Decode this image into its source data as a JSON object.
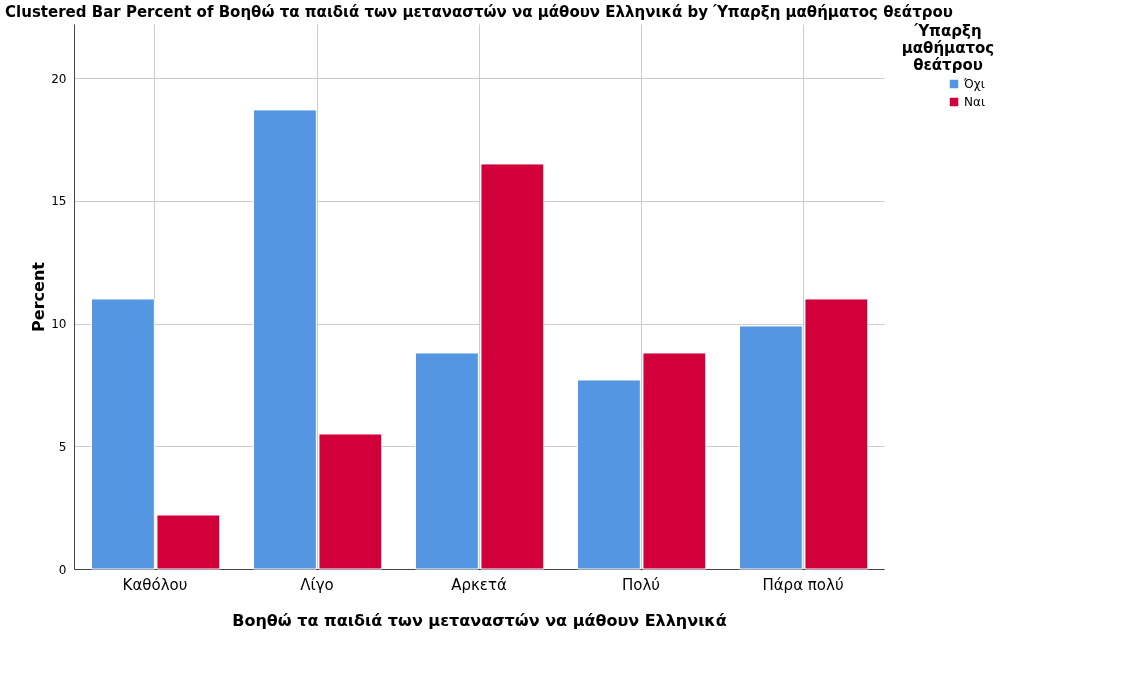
{
  "chart_data": {
    "type": "bar",
    "title": "Clustered Bar Percent of Βοηθώ τα παιδιά των μεταναστών να μάθουν Ελληνικά by Ύπαρξη μαθήματος θεάτρου",
    "xlabel": "Βοηθώ τα παιδιά των μεταναστών να μάθουν Ελληνικά",
    "ylabel": "Percent",
    "legend_title": "Ύπαρξη μαθήματος θεάτρου",
    "categories": [
      "Καθόλου",
      "Λίγο",
      "Αρκετά",
      "Πολύ",
      "Πάρα πολύ"
    ],
    "series": [
      {
        "name": "Όχι",
        "color": "#5596e2",
        "values": [
          11.0,
          18.7,
          8.8,
          7.7,
          9.9
        ]
      },
      {
        "name": "Ναι",
        "color": "#d1003a",
        "values": [
          2.2,
          5.5,
          16.5,
          8.8,
          11.0
        ]
      }
    ],
    "ylim": [
      0,
      22.2
    ],
    "yticks": [
      0,
      5,
      10,
      15,
      20
    ],
    "grid": true,
    "legend": "top right"
  }
}
